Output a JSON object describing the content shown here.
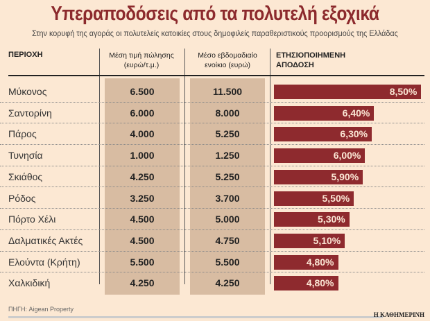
{
  "title": "Υπεραποδόσεις από τα πολυτελή εξοχικά",
  "subtitle": "Στην κορυφή της αγοράς οι πολυτελείς κατοικίες στους δημοφιλείς παραθεριστικούς προορισμούς της Ελλάδας",
  "headers": {
    "region": "ΠΕΡΙΟΧΗ",
    "price": "Μέση τιμή πώλησης (ευρώ/τ.μ.)",
    "rent": "Μέσο εβδομαδιαίο ενοίκιο (ευρώ)",
    "yield": "ΕΤΗΣΙΟΠΟΙΗΜΕΝΗ ΑΠΟΔΟΣΗ"
  },
  "source": "ΠΗΓΗ: Aigean Property",
  "logo": "Η ΚΑΘΗΜΕΡΙΝΗ",
  "colors": {
    "bar": "#8e2a2e",
    "background": "#fce8d3",
    "shade": "#d8bca2",
    "title": "#8c2a2d"
  },
  "chart_data": {
    "type": "table",
    "categories": [
      "Μύκονος",
      "Σαντορίνη",
      "Πάρος",
      "Τυνησία",
      "Σκιάθος",
      "Ρόδος",
      "Πόρτο Χέλι",
      "Δαλματικές Ακτές",
      "Ελούντα (Κρήτη)",
      "Χαλκιδική"
    ],
    "price": [
      "6.500",
      "6.000",
      "4.000",
      "1.000",
      "4.250",
      "3.250",
      "4.500",
      "4.500",
      "5.500",
      "4.250"
    ],
    "rent": [
      "11.500",
      "8.000",
      "5.250",
      "1.250",
      "5.250",
      "3.700",
      "5.000",
      "4.750",
      "5.500",
      "4.250"
    ],
    "yield_values": [
      8.5,
      6.4,
      6.3,
      6.0,
      5.9,
      5.5,
      5.3,
      5.1,
      4.8,
      4.8
    ],
    "yield_labels": [
      "8,50%",
      "6,40%",
      "6,30%",
      "6,00%",
      "5,90%",
      "5,50%",
      "5,30%",
      "5,10%",
      "4,80%",
      "4,80%"
    ]
  }
}
